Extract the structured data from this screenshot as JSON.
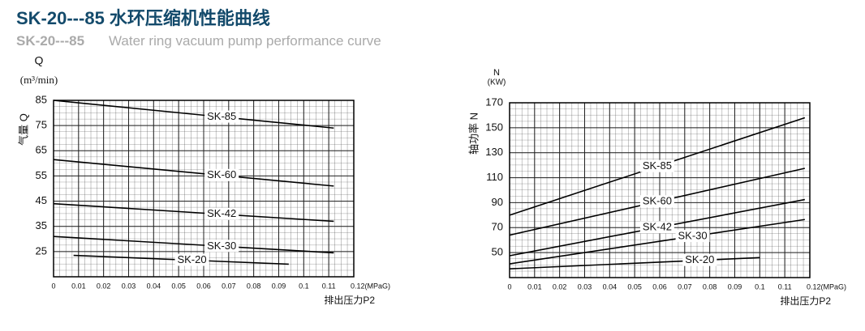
{
  "header": {
    "title": "SK-20---85 水环压缩机性能曲线",
    "subtitle_model": "SK-20---85",
    "subtitle": "Water ring vacuum pump performance curve"
  },
  "chart_data": [
    {
      "type": "line",
      "ylabel_top": "Q",
      "yunit": "(m³/min)",
      "ylabel": "气量 Q",
      "xlabel": "排出压力P2",
      "xlim": [
        0,
        0.12
      ],
      "ylim": [
        15,
        85
      ],
      "xticks": [
        0,
        0.01,
        0.02,
        0.03,
        0.04,
        0.05,
        0.06,
        0.07,
        0.08,
        0.09,
        0.1,
        0.11,
        {
          "value": 0.12,
          "label": "0.12(MPaG)"
        }
      ],
      "yticks": [
        25,
        35,
        45,
        55,
        65,
        75,
        85
      ],
      "grid": true,
      "color": "#000000",
      "series": [
        {
          "name": "SK-85",
          "x": [
            0,
            0.112
          ],
          "values": [
            85,
            74
          ]
        },
        {
          "name": "SK-60",
          "x": [
            0,
            0.112
          ],
          "values": [
            61.5,
            51
          ]
        },
        {
          "name": "SK-42",
          "x": [
            0,
            0.112
          ],
          "values": [
            44,
            37
          ]
        },
        {
          "name": "SK-30",
          "x": [
            0,
            0.112
          ],
          "values": [
            31,
            24.5
          ]
        },
        {
          "name": "SK-20",
          "x": [
            0.008,
            0.094
          ],
          "values": [
            23.5,
            20
          ]
        }
      ]
    },
    {
      "type": "line",
      "ylabel_top": "N",
      "yunit": "(KW)",
      "ylabel": "轴功率 N",
      "xlabel": "排出压力P2",
      "xlim": [
        0,
        0.12
      ],
      "ylim": [
        30,
        170
      ],
      "xticks": [
        0,
        0.01,
        0.02,
        0.03,
        0.04,
        0.05,
        0.06,
        0.07,
        0.08,
        0.09,
        0.1,
        0.11,
        {
          "value": 0.12,
          "label": "0.12(MPaG)"
        }
      ],
      "yticks": [
        50,
        70,
        90,
        110,
        130,
        150,
        170
      ],
      "grid": true,
      "color": "#000000",
      "series": [
        {
          "name": "SK-85",
          "x": [
            0,
            0.118
          ],
          "values": [
            80,
            158
          ]
        },
        {
          "name": "SK-60",
          "x": [
            0,
            0.118
          ],
          "values": [
            64,
            117.5
          ]
        },
        {
          "name": "SK-42",
          "x": [
            0,
            0.118
          ],
          "values": [
            47.5,
            92.5
          ]
        },
        {
          "name": "SK-30",
          "x": [
            0,
            0.118
          ],
          "values": [
            41,
            76.5
          ]
        },
        {
          "name": "SK-20",
          "x": [
            0,
            0.1
          ],
          "values": [
            37,
            46
          ]
        }
      ]
    }
  ]
}
